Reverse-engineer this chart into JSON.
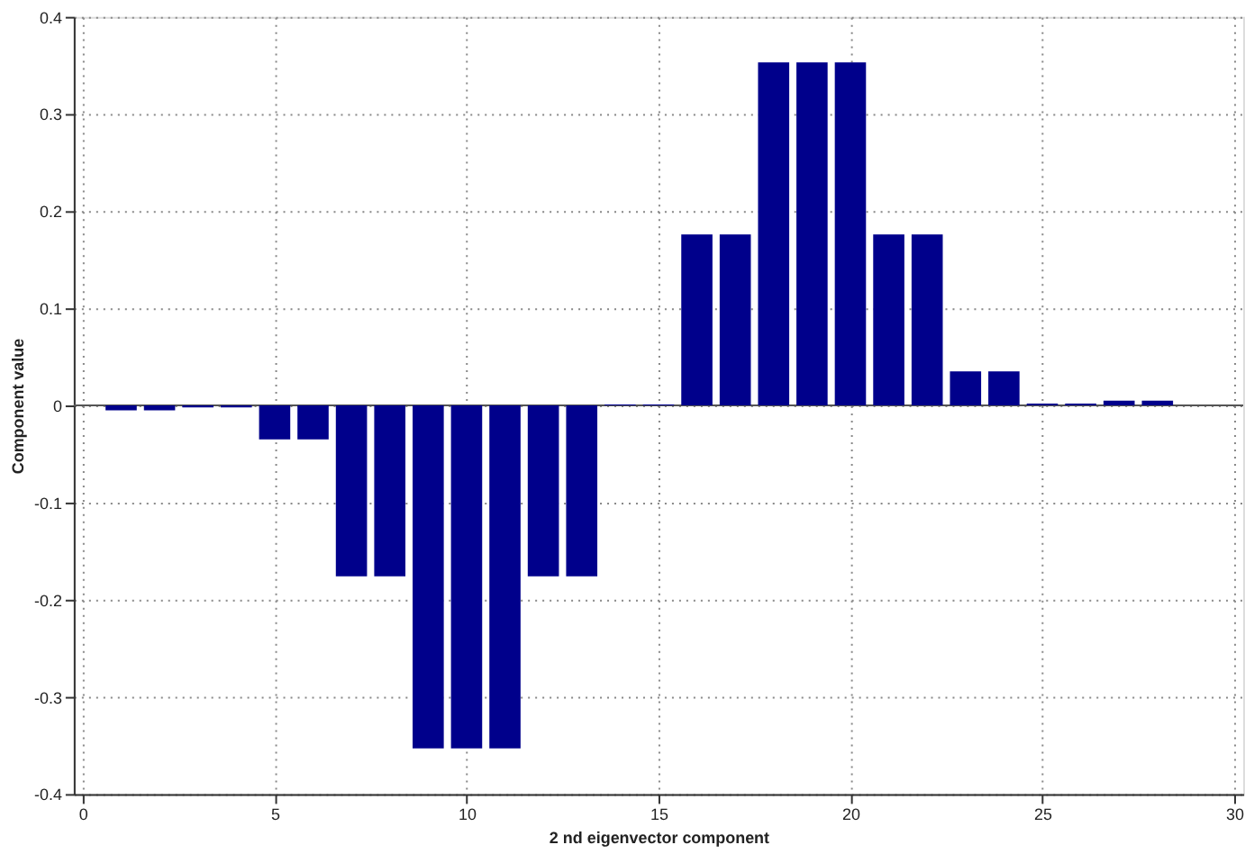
{
  "chart_data": {
    "type": "bar",
    "xlabel": "2 nd eigenvector component",
    "ylabel": "Component value",
    "x": [
      1,
      2,
      3,
      4,
      5,
      6,
      7,
      8,
      9,
      10,
      11,
      12,
      13,
      14,
      15,
      16,
      17,
      18,
      19,
      20,
      21,
      22,
      23,
      24,
      25,
      26,
      27,
      28
    ],
    "values": [
      -0.005,
      -0.005,
      -0.002,
      -0.002,
      -0.035,
      -0.035,
      -0.176,
      -0.176,
      -0.353,
      -0.353,
      -0.353,
      -0.176,
      -0.176,
      0.001,
      0.001,
      0.176,
      0.176,
      0.353,
      0.353,
      0.353,
      0.176,
      0.176,
      0.035,
      0.035,
      0.002,
      0.002,
      0.005,
      0.005
    ],
    "color": "#00008b",
    "xlim": [
      0,
      30
    ],
    "xticks": [
      0,
      5,
      10,
      15,
      20,
      25,
      30
    ],
    "ylim": [
      -0.4,
      0.4
    ],
    "yticks": [
      -0.4,
      -0.3,
      -0.2,
      -0.1,
      0,
      0.1,
      0.2,
      0.3,
      0.4
    ],
    "grid": true
  }
}
